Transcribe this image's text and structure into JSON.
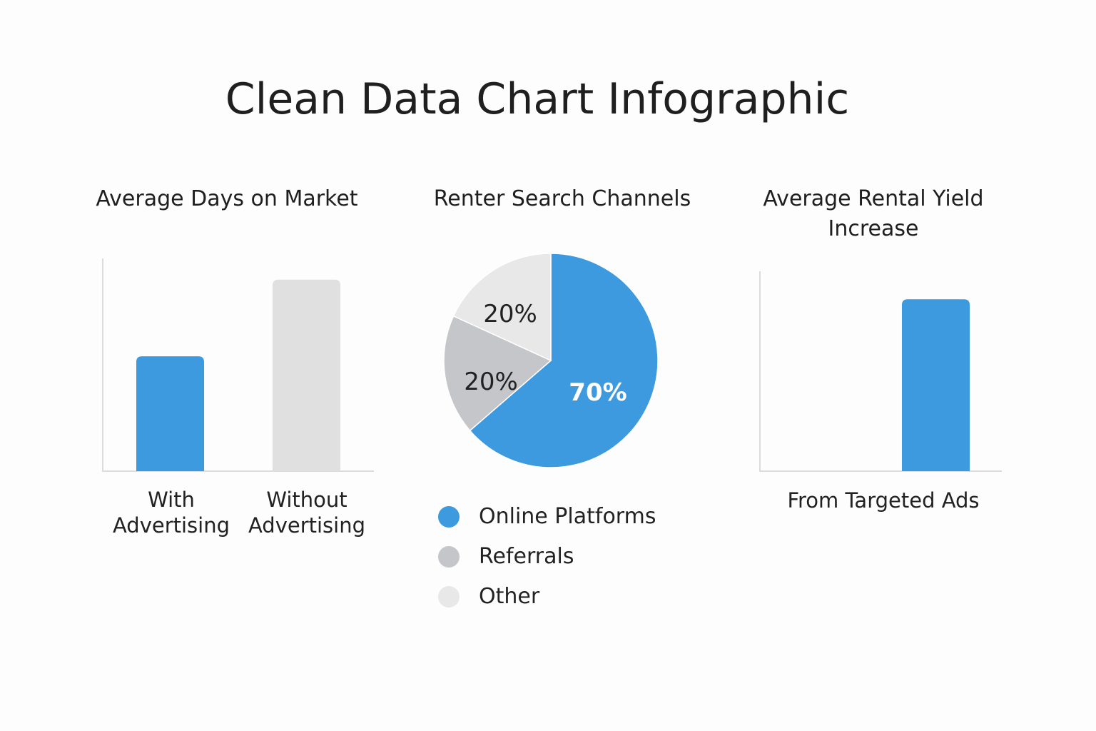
{
  "title": "Clean Data Chart Infographic",
  "chart_data": [
    {
      "type": "bar",
      "title": "Average Days on Market",
      "categories": [
        "With Advertising",
        "Without Advertising"
      ],
      "category_lines": [
        [
          "With",
          "Advertising"
        ],
        [
          "Without",
          "Advertising"
        ]
      ],
      "values": [
        0.54,
        0.9
      ],
      "ylim": [
        0,
        1
      ],
      "colors": [
        "#3d9ade",
        "#e0e0e0"
      ],
      "grid": false
    },
    {
      "type": "pie",
      "title": "Renter Search Channels",
      "labels": [
        "Online Platforms",
        "Referrals",
        "Other"
      ],
      "values": [
        70,
        20,
        20
      ],
      "value_labels": [
        "70%",
        "20%",
        "20%"
      ],
      "colors": [
        "#3d9ade",
        "#c4c6ca",
        "#e8e8e8"
      ],
      "legend": "bottom"
    },
    {
      "type": "bar",
      "title_lines": [
        "Average Rental Yield",
        "Increase"
      ],
      "categories": [
        "From Targeted Ads"
      ],
      "values": [
        0.86
      ],
      "ylim": [
        0,
        1
      ],
      "colors": [
        "#3d9ade"
      ],
      "grid": false
    }
  ]
}
